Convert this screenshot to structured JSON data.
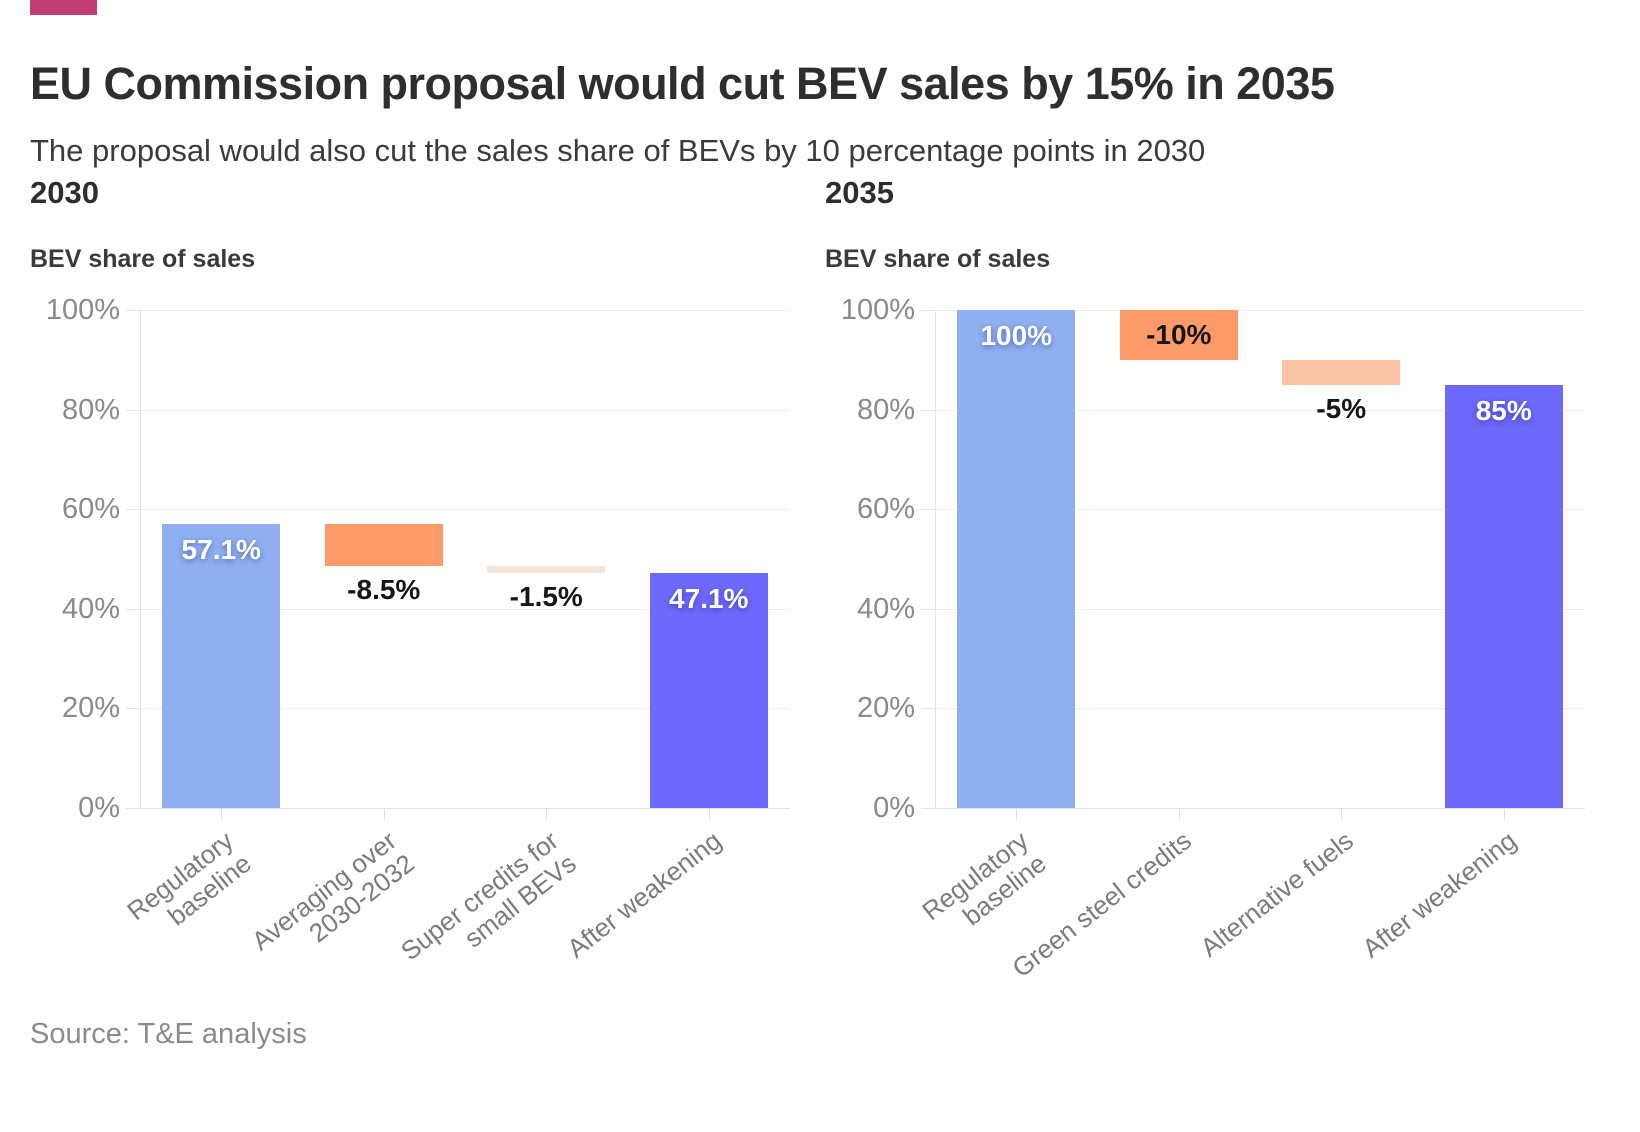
{
  "brand": {
    "color": "#C13D72"
  },
  "header": {
    "title": "EU Commission proposal would cut BEV sales by 15% in 2035",
    "subtitle": "The proposal would also cut the sales share of BEVs by 10 percentage points in 2030"
  },
  "footer": {
    "source": "Source: T&E analysis"
  },
  "colors": {
    "baseline_blue": "#8FAFF0",
    "reduction_orange": "#FC9A6A",
    "reduction_peach": "#FBC4A7",
    "reduction_beige": "#F2E4D6",
    "result_purple": "#6E68FC",
    "grid_gray": "#ededed",
    "axis_text_gray": "#8a8a8a"
  },
  "chart_data": [
    {
      "type": "bar",
      "variant": "waterfall",
      "panel_label": "2030",
      "axis_title": "BEV share of sales",
      "ylim": [
        0,
        100
      ],
      "grid": true,
      "yticks": [
        0,
        20,
        40,
        60,
        80,
        100
      ],
      "ytick_labels": [
        "0%",
        "20%",
        "40%",
        "60%",
        "80%",
        "100%"
      ],
      "categories": [
        "Regulatory\nbaseline",
        "Averaging over\n2030-2032",
        "Super credits for\nsmall BEVs",
        "After weakening"
      ],
      "bars": [
        {
          "category": "Regulatory baseline",
          "start": 0,
          "end": 57.1,
          "value_label": "57.1%",
          "color": "#8FAFF0",
          "label_pos": "inside-top",
          "label_style": "light"
        },
        {
          "category": "Averaging over 2030-2032",
          "start": 48.6,
          "end": 57.1,
          "value_label": "-8.5%",
          "color": "#FC9A6A",
          "label_pos": "below",
          "label_style": "dark"
        },
        {
          "category": "Super credits for small BEVs",
          "start": 47.1,
          "end": 48.6,
          "value_label": "-1.5%",
          "color": "#F2E4D6",
          "label_pos": "below",
          "label_style": "dark"
        },
        {
          "category": "After weakening",
          "start": 0,
          "end": 47.1,
          "value_label": "47.1%",
          "color": "#6E68FC",
          "label_pos": "inside-top",
          "label_style": "light"
        }
      ]
    },
    {
      "type": "bar",
      "variant": "waterfall",
      "panel_label": "2035",
      "axis_title": "BEV share of sales",
      "ylim": [
        0,
        100
      ],
      "grid": true,
      "yticks": [
        0,
        20,
        40,
        60,
        80,
        100
      ],
      "ytick_labels": [
        "0%",
        "20%",
        "40%",
        "60%",
        "80%",
        "100%"
      ],
      "categories": [
        "Regulatory\nbaseline",
        "Green steel credits",
        "Alternative fuels",
        "After weakening"
      ],
      "bars": [
        {
          "category": "Regulatory baseline",
          "start": 0,
          "end": 100,
          "value_label": "100%",
          "color": "#8FAFF0",
          "label_pos": "inside-top",
          "label_style": "light"
        },
        {
          "category": "Green steel credits",
          "start": 90,
          "end": 100,
          "value_label": "-10%",
          "color": "#FC9A6A",
          "label_pos": "inside-middle",
          "label_style": "dark"
        },
        {
          "category": "Alternative fuels",
          "start": 85,
          "end": 90,
          "value_label": "-5%",
          "color": "#FBC4A7",
          "label_pos": "below",
          "label_style": "dark"
        },
        {
          "category": "After weakening",
          "start": 0,
          "end": 85,
          "value_label": "85%",
          "color": "#6E68FC",
          "label_pos": "inside-top",
          "label_style": "light"
        }
      ]
    }
  ]
}
